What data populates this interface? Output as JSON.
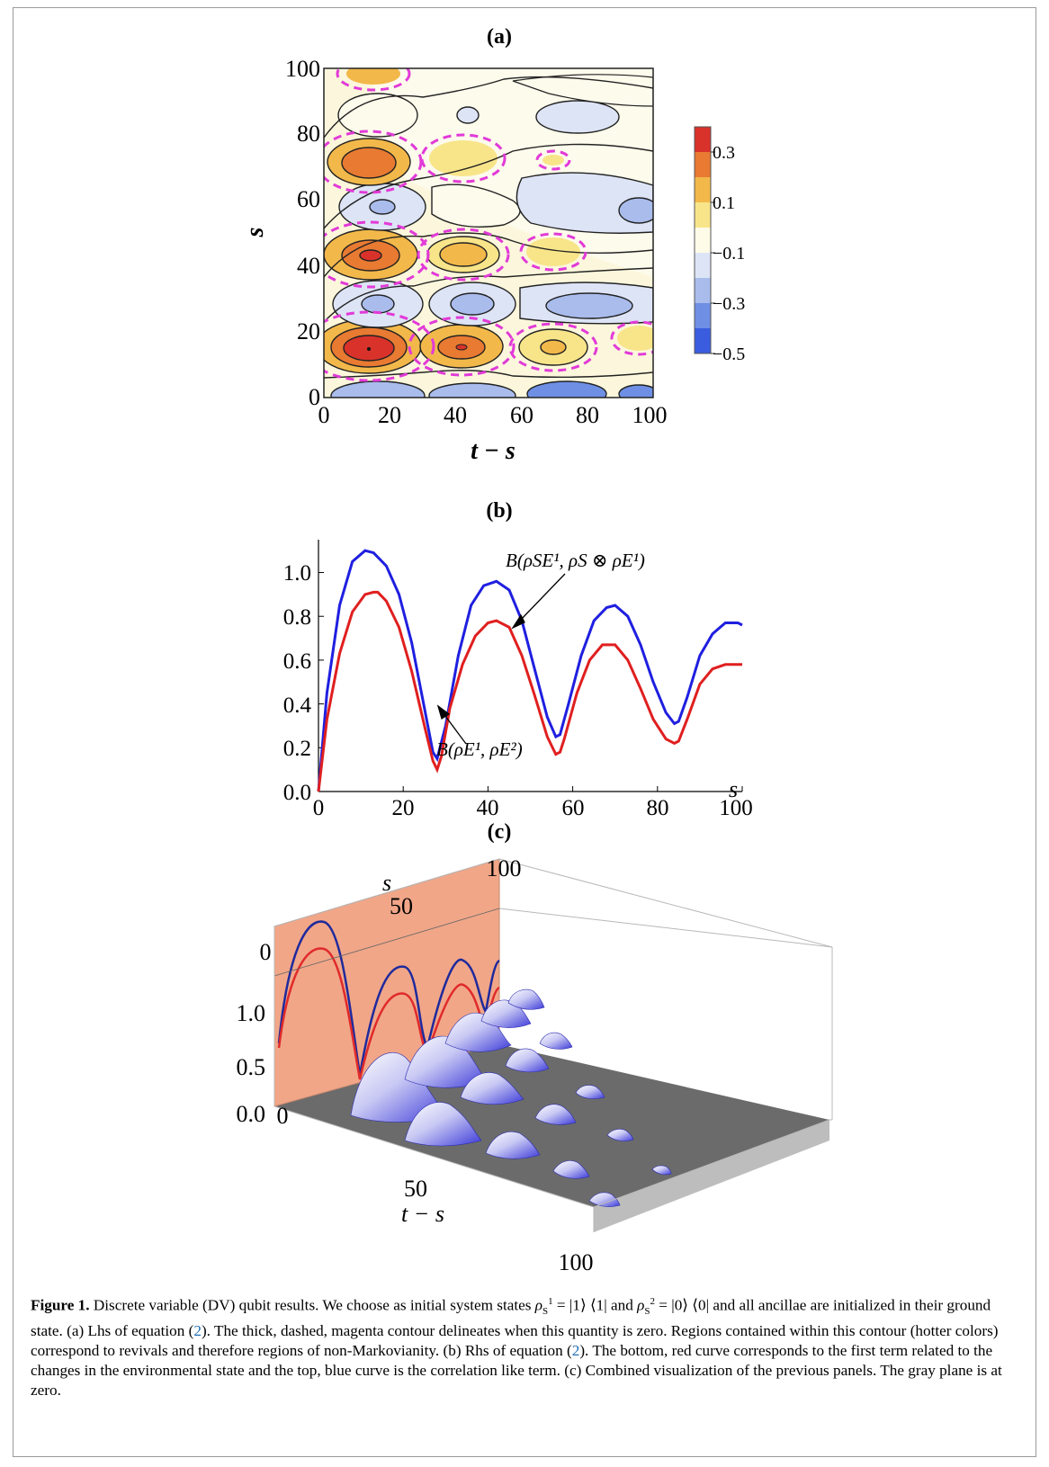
{
  "panels": {
    "a": {
      "label": "(a)",
      "xlabel": "t − s",
      "ylabel": "s",
      "xticks": [
        "0",
        "20",
        "40",
        "60",
        "80",
        "100"
      ],
      "yticks": [
        "0",
        "20",
        "40",
        "60",
        "80",
        "100"
      ],
      "colorbar_ticks": [
        "0.3",
        "0.1",
        "−0.1",
        "−0.3",
        "−0.5"
      ]
    },
    "b": {
      "label": "(b)",
      "xlabel": "s",
      "xticks": [
        "0",
        "20",
        "40",
        "60",
        "80",
        "100"
      ],
      "yticks": [
        "0.0",
        "0.2",
        "0.4",
        "0.6",
        "0.8",
        "1.0"
      ],
      "annotation_top": "B(ρSE¹, ρS ⊗ ρE¹)",
      "annotation_bottom": "B(ρE¹, ρE²)"
    },
    "c": {
      "label": "(c)",
      "s_axis_label": "s",
      "s_ticks": [
        "0",
        "50",
        "100"
      ],
      "z_ticks": [
        "0.0",
        "0.5",
        "1.0"
      ],
      "ts_axis_label": "t − s",
      "ts_ticks": [
        "0",
        "50",
        "100"
      ]
    }
  },
  "chart_data": [
    {
      "type": "heatmap",
      "panel": "(a)",
      "xlabel": "t − s",
      "ylabel": "s",
      "xlim": [
        0,
        100
      ],
      "ylim": [
        0,
        100
      ],
      "colorbar": [
        0.3,
        0.1,
        -0.1,
        -0.3,
        -0.5
      ],
      "colors": [
        "#d8322a",
        "#e87a32",
        "#f2b84a",
        "#f8e58a",
        "#fefbe8",
        "#dde4f6",
        "#a9bcec",
        "#6e8fe4",
        "#3a5de0"
      ],
      "zero_contour_color": "#e23ad8",
      "peaks": [
        {
          "t_minus_s": 14,
          "s": 15,
          "value": 0.35
        },
        {
          "t_minus_s": 42,
          "s": 15,
          "value": 0.2
        },
        {
          "t_minus_s": 70,
          "s": 15,
          "value": 0.1
        },
        {
          "t_minus_s": 14,
          "s": 43,
          "value": 0.25
        },
        {
          "t_minus_s": 42,
          "s": 43,
          "value": 0.12
        },
        {
          "t_minus_s": 14,
          "s": 71,
          "value": 0.15
        }
      ]
    },
    {
      "type": "line",
      "panel": "(b)",
      "xlabel": "s",
      "xlim": [
        0,
        100
      ],
      "ylim": [
        0,
        1.15
      ],
      "series": [
        {
          "name": "B(ρSE¹, ρS ⊗ ρE¹)",
          "color": "#1f1fe0",
          "x": [
            0,
            2,
            5,
            8,
            11,
            13,
            16,
            19,
            22,
            25,
            27,
            28,
            30,
            33,
            36,
            39,
            42,
            45,
            48,
            51,
            54,
            56,
            57,
            59,
            62,
            65,
            68,
            70,
            73,
            76,
            79,
            82,
            84,
            85,
            87,
            90,
            93,
            96,
            99,
            100
          ],
          "y": [
            0.0,
            0.45,
            0.85,
            1.05,
            1.1,
            1.09,
            1.03,
            0.9,
            0.68,
            0.38,
            0.18,
            0.15,
            0.3,
            0.62,
            0.85,
            0.94,
            0.96,
            0.92,
            0.78,
            0.56,
            0.34,
            0.25,
            0.26,
            0.4,
            0.62,
            0.78,
            0.84,
            0.85,
            0.8,
            0.67,
            0.5,
            0.36,
            0.31,
            0.32,
            0.43,
            0.62,
            0.72,
            0.77,
            0.77,
            0.76
          ]
        },
        {
          "name": "B(ρE¹, ρE²)",
          "color": "#e01f1f",
          "x": [
            0,
            2,
            5,
            8,
            11,
            13,
            14,
            16,
            19,
            22,
            25,
            27,
            28,
            29,
            31,
            34,
            37,
            40,
            42,
            45,
            48,
            51,
            54,
            56,
            57,
            58,
            61,
            64,
            67,
            70,
            73,
            76,
            79,
            82,
            84,
            85,
            87,
            90,
            93,
            96,
            99,
            100
          ],
          "y": [
            0.0,
            0.33,
            0.63,
            0.82,
            0.9,
            0.91,
            0.91,
            0.87,
            0.75,
            0.55,
            0.3,
            0.14,
            0.1,
            0.16,
            0.38,
            0.58,
            0.71,
            0.77,
            0.78,
            0.75,
            0.62,
            0.44,
            0.25,
            0.17,
            0.18,
            0.24,
            0.45,
            0.6,
            0.67,
            0.67,
            0.6,
            0.47,
            0.33,
            0.24,
            0.22,
            0.23,
            0.33,
            0.49,
            0.56,
            0.58,
            0.58,
            0.58
          ]
        }
      ]
    },
    {
      "type": "surface",
      "panel": "(c)",
      "axes": {
        "s": [
          0,
          100
        ],
        "t_minus_s": [
          0,
          100
        ],
        "z": [
          0.0,
          1.0
        ]
      }
    }
  ],
  "caption": {
    "bold": "Figure 1.",
    "p1": " Discrete variable (DV) qubit results. We choose as initial system states ",
    "rho1": "ρ",
    "rho1_sub": "S",
    "rho1_sup": "1",
    "eq1": " = |1⟩ ⟨1| and ",
    "rho2": "ρ",
    "rho2_sub": "S",
    "rho2_sup": "2",
    "eq2": " = |0⟩ ⟨0| and all ancillae are initialized in their ground state. (a) Lhs of equation (",
    "ref1": "2",
    "p2": "). The thick, dashed, magenta contour delineates when this quantity is zero. Regions contained within this contour (hotter colors) correspond to revivals and therefore regions of non-Markovianity. (b) Rhs of equation (",
    "ref2": "2",
    "p3": "). The bottom, red curve corresponds to the first term related to the changes in the environmental state and the top, blue curve is the correlation like term. (c) Combined visualization of the previous panels. The gray plane is at zero."
  }
}
